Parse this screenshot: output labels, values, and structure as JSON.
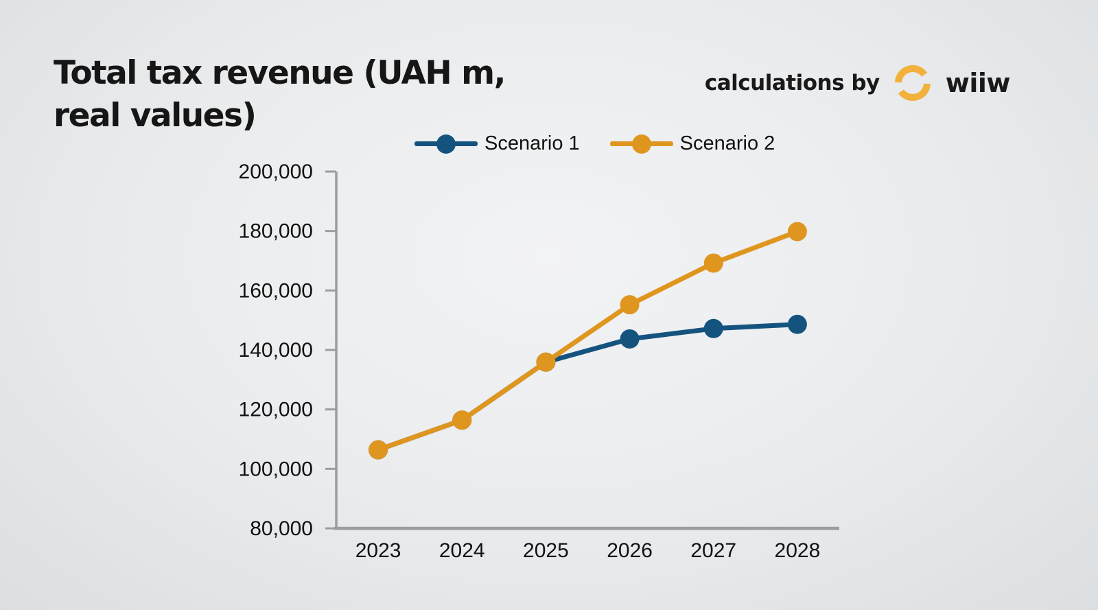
{
  "header": {
    "title": "Total tax revenue (UAH m,\nreal values)",
    "attribution_text": "calculations by",
    "brand_name": "wiiw"
  },
  "colors": {
    "scenario1_blue": "#15537f",
    "scenario2_orange": "#df961f",
    "brand_logo_yellow": "#f2b13c",
    "axis_gray": "#9a9ea2",
    "text_dark": "#161616",
    "background_light": "#eaecee"
  },
  "chart_data": {
    "type": "line",
    "title": "Total tax revenue (UAH m, real values)",
    "categories": [
      "2023",
      "2024",
      "2025",
      "2026",
      "2027",
      "2028"
    ],
    "series": [
      {
        "name": "Scenario 1",
        "color": "#15537f",
        "values": [
          106400,
          116400,
          135900,
          143700,
          147200,
          148600
        ]
      },
      {
        "name": "Scenario 2",
        "color": "#df961f",
        "values": [
          106400,
          116400,
          135900,
          155200,
          169200,
          179800
        ]
      }
    ],
    "xlabel": "",
    "ylabel": "",
    "ylim": [
      80000,
      200000
    ],
    "ytick_step": 20000,
    "ytick_labels": [
      "80,000",
      "100,000",
      "120,000",
      "140,000",
      "160,000",
      "180,000",
      "200,000"
    ],
    "grid": false,
    "legend_position": "top-center",
    "marker": "circle"
  }
}
